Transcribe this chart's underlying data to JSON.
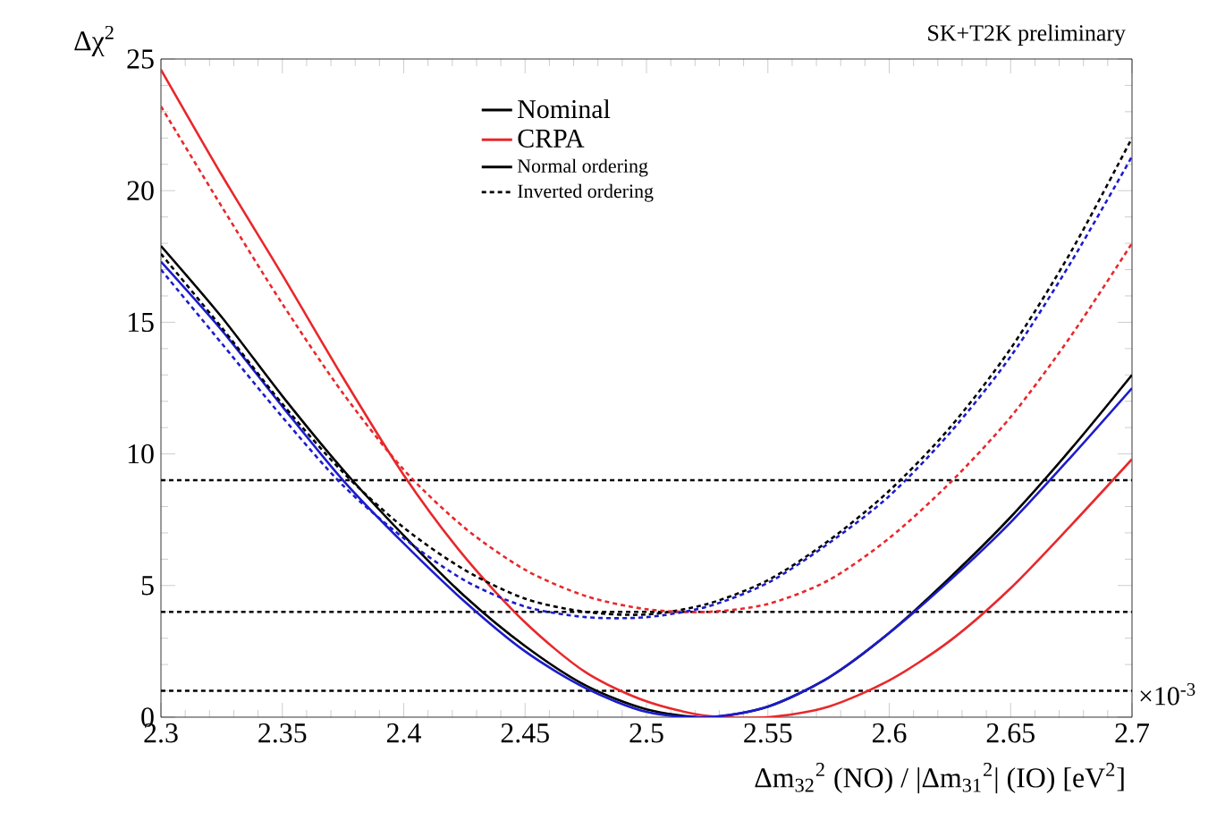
{
  "chart_data": {
    "type": "line",
    "title": "SK+T2K preliminary",
    "xlabel": "Δm$_{32}$$^{2}$ (NO) / |Δm$_{31}$$^{2}$| (IO) [eV$^{2}$]",
    "ylabel": "Δχ$^{2}$",
    "xlim": [
      2.3,
      2.7
    ],
    "ylim": [
      0,
      25
    ],
    "xticks": [
      2.3,
      2.35,
      2.4,
      2.45,
      2.5,
      2.55,
      2.6,
      2.65,
      2.7
    ],
    "yticks": [
      0,
      5,
      10,
      15,
      20,
      25
    ],
    "legend": "top",
    "grid": false,
    "annotations": [
      "×10$^{-3}$",
      "Normal ordering",
      "Inverted ordering"
    ],
    "ref_lines": [
      {
        "axis": "y",
        "value": 1,
        "color": "#000000",
        "line_style": "dashed"
      },
      {
        "axis": "y",
        "value": 4,
        "color": "#000000",
        "line_style": "dashed"
      },
      {
        "axis": "y",
        "value": 9,
        "color": "#000000",
        "line_style": "dashed"
      }
    ],
    "x": [
      2.3,
      2.325,
      2.35,
      2.375,
      2.4,
      2.425,
      2.45,
      2.475,
      2.5,
      2.525,
      2.55,
      2.575,
      2.6,
      2.625,
      2.65,
      2.675,
      2.7
    ],
    "series": [
      {
        "name": "Nominal",
        "color": "#000000",
        "line_style": "solid",
        "values": [
          17.9,
          15.2,
          12.2,
          9.4,
          6.9,
          4.6,
          2.7,
          1.2,
          0.3,
          0,
          0.4,
          1.5,
          3.2,
          5.3,
          7.6,
          10.2,
          13.0
        ]
      },
      {
        "name": "CRPA",
        "color": "#e8282b",
        "line_style": "solid",
        "values": [
          24.6,
          20.6,
          16.8,
          12.9,
          9.2,
          6.1,
          3.6,
          1.7,
          0.6,
          0.05,
          0,
          0.4,
          1.4,
          2.9,
          4.9,
          7.3,
          9.8
        ]
      },
      {
        "color": "#1c1ccc",
        "line_style": "solid",
        "values": [
          17.3,
          14.7,
          11.8,
          9.0,
          6.6,
          4.4,
          2.5,
          1.1,
          0.2,
          0,
          0.4,
          1.5,
          3.2,
          5.2,
          7.4,
          9.9,
          12.5
        ]
      },
      {
        "color": "#000000",
        "line_style": "dashed",
        "values": [
          17.6,
          14.8,
          11.9,
          9.3,
          7.2,
          5.6,
          4.5,
          4.0,
          3.9,
          4.3,
          5.2,
          6.7,
          8.6,
          11.0,
          14.0,
          17.7,
          22.0
        ]
      },
      {
        "color": "#e8282b",
        "line_style": "dashed",
        "values": [
          23.2,
          19.4,
          15.7,
          12.3,
          9.4,
          7.2,
          5.6,
          4.6,
          4.1,
          4.0,
          4.3,
          5.2,
          6.8,
          8.9,
          11.4,
          14.5,
          18.0
        ]
      },
      {
        "color": "#1c1ccc",
        "line_style": "dashed",
        "values": [
          17.0,
          14.2,
          11.4,
          8.8,
          6.8,
          5.2,
          4.2,
          3.8,
          3.8,
          4.2,
          5.1,
          6.6,
          8.4,
          10.8,
          13.7,
          17.3,
          21.3
        ]
      }
    ]
  }
}
